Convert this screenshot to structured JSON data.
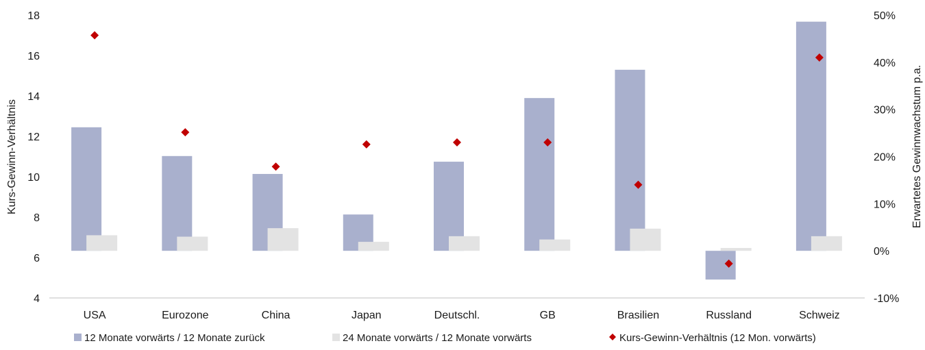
{
  "chart_data": {
    "type": "bar",
    "categories": [
      "USA",
      "Eurozone",
      "China",
      "Japan",
      "Deutschl.",
      "GB",
      "Brasilien",
      "Russland",
      "Schweiz"
    ],
    "series": [
      {
        "name": "12 Monate vorwärts / 12 Monate zurück",
        "type": "bar",
        "axis": "right",
        "color": "#a9b0cd",
        "values": [
          26.2,
          20.1,
          16.3,
          7.7,
          18.9,
          32.4,
          38.4,
          -6.1,
          48.6
        ]
      },
      {
        "name": "24 Monate vorwärts / 12 Monate vorwärts",
        "type": "bar",
        "axis": "right",
        "color": "#e3e3e3",
        "values": [
          3.3,
          3.0,
          4.8,
          1.9,
          3.1,
          2.4,
          4.7,
          0.6,
          3.1
        ]
      },
      {
        "name": "Kurs-Gewinn-Verhältnis (12 Mon. vorwärts)",
        "type": "scatter",
        "axis": "left",
        "marker": "diamond",
        "color": "#c00000",
        "values": [
          17.0,
          12.2,
          10.5,
          11.6,
          11.7,
          11.7,
          9.6,
          5.7,
          15.9
        ]
      }
    ],
    "ylabel": "Kurs-Gewinn-Verhältnis",
    "ylabel_right": "Erwartetes Gewinnwachstum p.a.",
    "ylim": [
      4,
      18
    ],
    "yticks": [
      "4",
      "6",
      "8",
      "10",
      "12",
      "14",
      "16",
      "18"
    ],
    "ylim_right": [
      -10,
      50
    ],
    "yticks_right": [
      "-10%",
      "0%",
      "10%",
      "20%",
      "30%",
      "40%",
      "50%"
    ],
    "grid": false,
    "legend_position": "bottom"
  }
}
